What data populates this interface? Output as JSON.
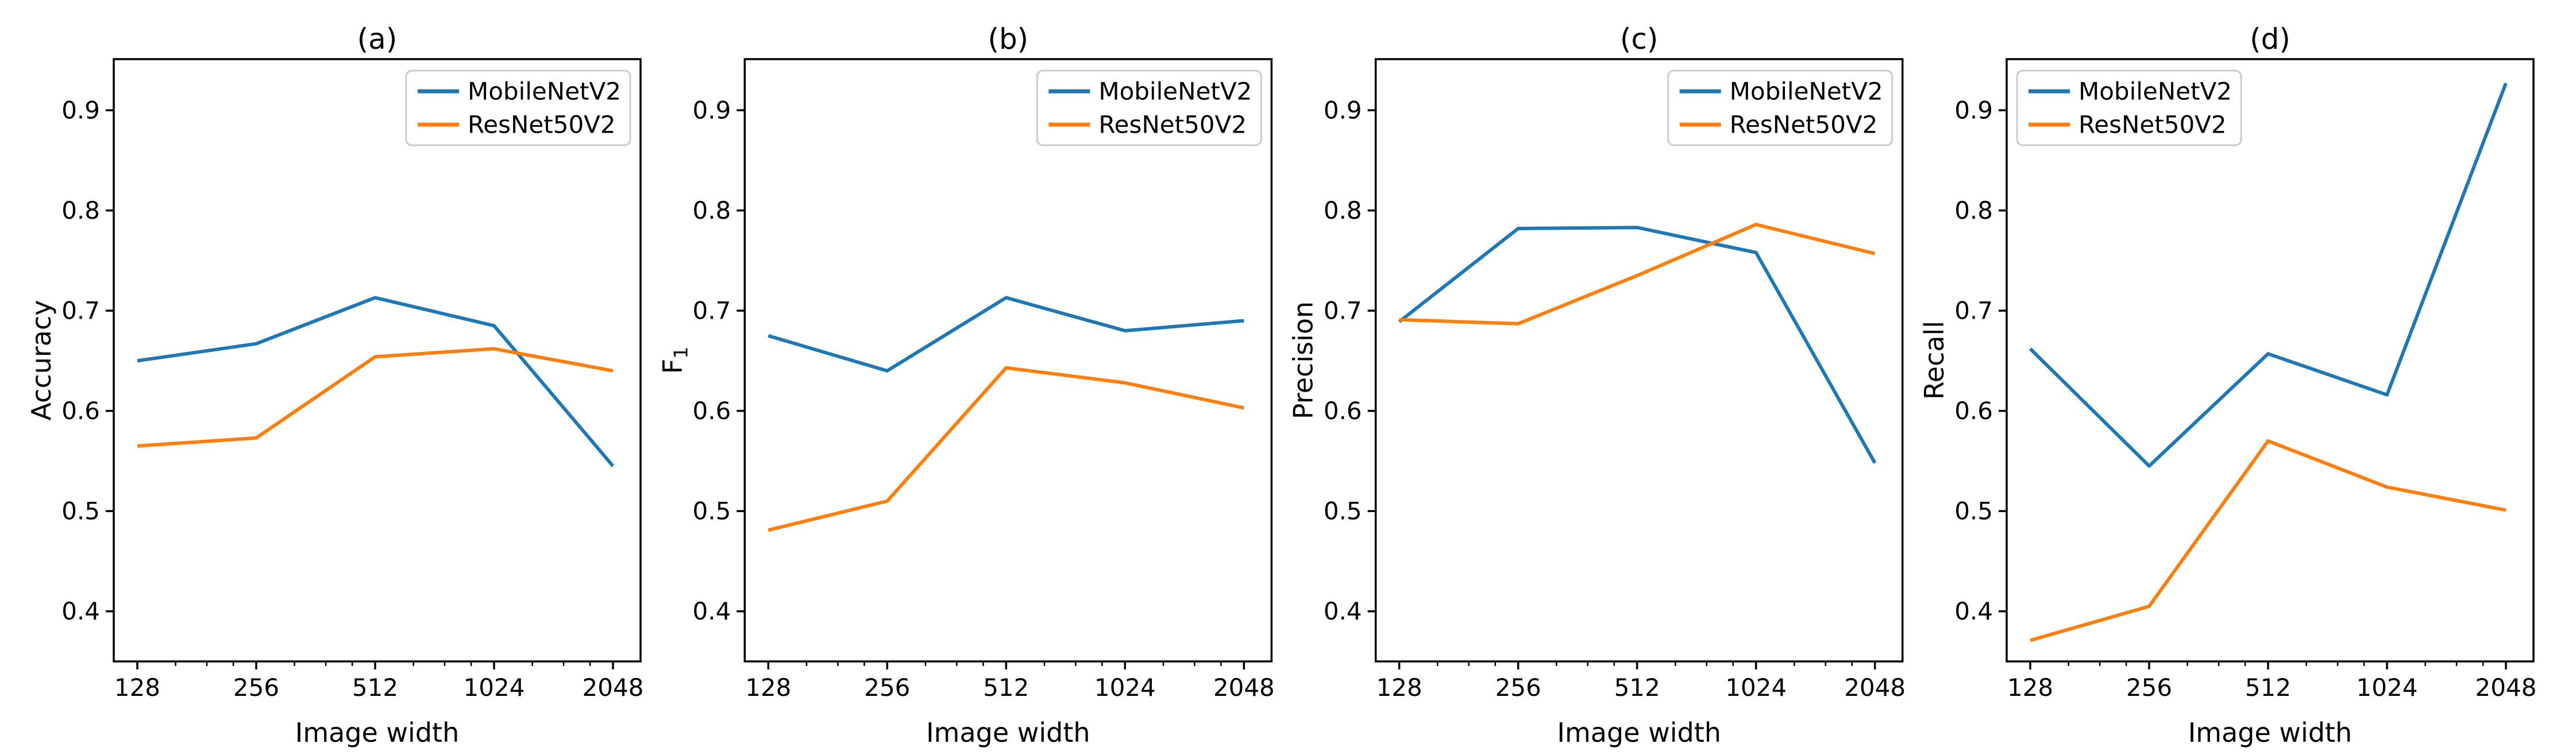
{
  "figure": {
    "background": "#ffffff",
    "text_color": "#000000",
    "series_colors": {
      "MobileNetV2": "#1f77b4",
      "ResNet50V2": "#ff7f0e"
    },
    "legend_border_color": "#cccccc",
    "x_axis": {
      "label": "Image width",
      "scale": "log2",
      "tick_labels": [
        "128",
        "256",
        "512",
        "1024",
        "2048"
      ],
      "tick_values": [
        128,
        256,
        512,
        1024,
        2048
      ]
    },
    "y_axis": {
      "tick_labels": [
        "0.4",
        "0.5",
        "0.6",
        "0.7",
        "0.8",
        "0.9"
      ],
      "tick_values": [
        0.4,
        0.5,
        0.6,
        0.7,
        0.8,
        0.9
      ],
      "ylim": [
        0.35,
        0.951
      ]
    }
  },
  "chart_data": [
    {
      "type": "line",
      "title": "(a)",
      "ylabel": "Accuracy",
      "xlabel": "Image width",
      "x": [
        128,
        256,
        512,
        1024,
        2048
      ],
      "x_scale": "log2",
      "ylim": [
        0.35,
        0.951
      ],
      "yticks": [
        0.4,
        0.5,
        0.6,
        0.7,
        0.8,
        0.9
      ],
      "grid": false,
      "legend": {
        "position": "upper right",
        "entries": [
          "MobileNetV2",
          "ResNet50V2"
        ]
      },
      "series": [
        {
          "name": "MobileNetV2",
          "color": "#1f77b4",
          "values": [
            0.65,
            0.667,
            0.713,
            0.685,
            0.545
          ]
        },
        {
          "name": "ResNet50V2",
          "color": "#ff7f0e",
          "values": [
            0.565,
            0.573,
            0.654,
            0.662,
            0.64
          ]
        }
      ]
    },
    {
      "type": "line",
      "title": "(b)",
      "ylabel": "F₁",
      "xlabel": "Image width",
      "x": [
        128,
        256,
        512,
        1024,
        2048
      ],
      "x_scale": "log2",
      "ylim": [
        0.35,
        0.951
      ],
      "yticks": [
        0.4,
        0.5,
        0.6,
        0.7,
        0.8,
        0.9
      ],
      "grid": false,
      "legend": {
        "position": "upper right",
        "entries": [
          "MobileNetV2",
          "ResNet50V2"
        ]
      },
      "series": [
        {
          "name": "MobileNetV2",
          "color": "#1f77b4",
          "values": [
            0.675,
            0.64,
            0.713,
            0.68,
            0.69
          ]
        },
        {
          "name": "ResNet50V2",
          "color": "#ff7f0e",
          "values": [
            0.481,
            0.51,
            0.643,
            0.628,
            0.603
          ]
        }
      ]
    },
    {
      "type": "line",
      "title": "(c)",
      "ylabel": "Precision",
      "xlabel": "Image width",
      "x": [
        128,
        256,
        512,
        1024,
        2048
      ],
      "x_scale": "log2",
      "ylim": [
        0.35,
        0.951
      ],
      "yticks": [
        0.4,
        0.5,
        0.6,
        0.7,
        0.8,
        0.9
      ],
      "grid": false,
      "legend": {
        "position": "upper right",
        "entries": [
          "MobileNetV2",
          "ResNet50V2"
        ]
      },
      "series": [
        {
          "name": "MobileNetV2",
          "color": "#1f77b4",
          "values": [
            0.689,
            0.782,
            0.783,
            0.758,
            0.548
          ]
        },
        {
          "name": "ResNet50V2",
          "color": "#ff7f0e",
          "values": [
            0.691,
            0.687,
            0.735,
            0.786,
            0.757
          ]
        }
      ]
    },
    {
      "type": "line",
      "title": "(d)",
      "ylabel": "Recall",
      "xlabel": "Image width",
      "x": [
        128,
        256,
        512,
        1024,
        2048
      ],
      "x_scale": "log2",
      "ylim": [
        0.35,
        0.951
      ],
      "yticks": [
        0.4,
        0.5,
        0.6,
        0.7,
        0.8,
        0.9
      ],
      "grid": false,
      "legend": {
        "position": "upper left",
        "entries": [
          "MobileNetV2",
          "ResNet50V2"
        ]
      },
      "series": [
        {
          "name": "MobileNetV2",
          "color": "#1f77b4",
          "values": [
            0.662,
            0.545,
            0.657,
            0.616,
            0.927
          ]
        },
        {
          "name": "ResNet50V2",
          "color": "#ff7f0e",
          "values": [
            0.371,
            0.405,
            0.57,
            0.524,
            0.501
          ]
        }
      ]
    }
  ]
}
